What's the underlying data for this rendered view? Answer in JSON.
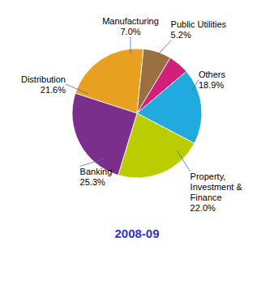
{
  "chart_data": {
    "type": "pie",
    "title": "2008-09",
    "categories": [
      "Distribution",
      "Manufacturing",
      "Public Utilities",
      "Others",
      "Property,\nInvestment &\nFinance",
      "Banking"
    ],
    "values": [
      21.6,
      7.0,
      5.2,
      18.9,
      22.0,
      25.3
    ],
    "value_labels": [
      "21.6%",
      "7.0%",
      "5.2%",
      "18.9%",
      "22.0%",
      "25.3%"
    ],
    "colors": [
      "#E8A020",
      "#9B7040",
      "#D0207C",
      "#20AADD",
      "#BBCC00",
      "#7B2F8C"
    ],
    "data_labels": true
  }
}
